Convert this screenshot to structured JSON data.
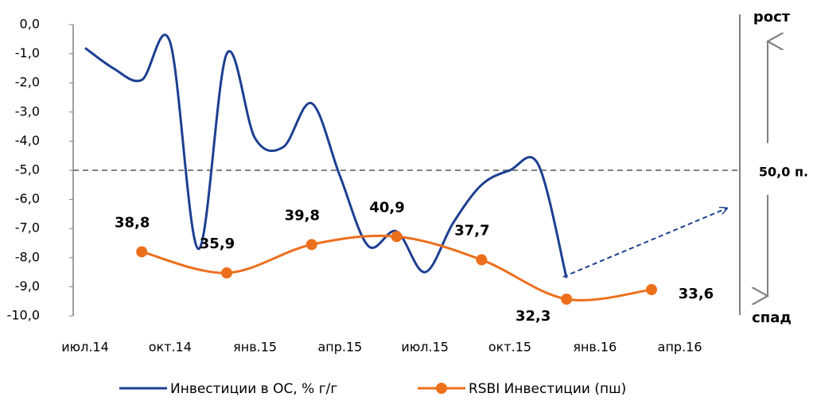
{
  "chart_data": {
    "type": "line",
    "categories": [
      "июл.14",
      null,
      null,
      "окт.14",
      null,
      null,
      "янв.15",
      null,
      null,
      "апр.15",
      null,
      null,
      "июл.15",
      null,
      null,
      "окт.15",
      null,
      null,
      "янв.16",
      null,
      null,
      "апр.16"
    ],
    "series": [
      {
        "name": "Инвестиции в ОС, % г/г",
        "color": "#1c3f91",
        "values": [
          -0.8,
          -1.5,
          -1.9,
          -0.6,
          -7.7,
          -1.0,
          -3.9,
          -4.2,
          -2.7,
          -5.2,
          -7.6,
          -7.1,
          -8.5,
          -6.8,
          -5.5,
          -5.0,
          -4.8,
          -8.7,
          null,
          null,
          null,
          null
        ]
      },
      {
        "name": "RSBI Инвестиции (пш)",
        "color": "#ec6f1c",
        "axis": "y2",
        "values": [
          null,
          null,
          38.8,
          null,
          null,
          35.9,
          null,
          null,
          39.8,
          null,
          null,
          40.9,
          null,
          null,
          37.7,
          null,
          null,
          32.3,
          null,
          null,
          33.6,
          null
        ],
        "value_labels": [
          null,
          null,
          "38,8",
          null,
          null,
          "35,9",
          null,
          null,
          "39,8",
          null,
          null,
          "40,9",
          null,
          null,
          "37,7",
          null,
          null,
          "32,3",
          null,
          null,
          "33,6",
          null
        ]
      }
    ],
    "ylim": [
      -10,
      0
    ],
    "yticks": [
      {
        "value": 0,
        "label": "0,0"
      },
      {
        "value": -1,
        "label": "-1,0"
      },
      {
        "value": -2,
        "label": "-2,0"
      },
      {
        "value": -3,
        "label": "-3,0"
      },
      {
        "value": -4,
        "label": "-4,0"
      },
      {
        "value": -5,
        "label": "-5,0"
      },
      {
        "value": -6,
        "label": "-6,0"
      },
      {
        "value": -7,
        "label": "-7,0"
      },
      {
        "value": -8,
        "label": "-8,0"
      },
      {
        "value": -9,
        "label": "-9,0"
      },
      {
        "value": -10,
        "label": "-10,0"
      }
    ],
    "y2lim": [
      30,
      70
    ],
    "y2ticks": [
      {
        "value": 50,
        "label": "50,0 п."
      }
    ],
    "annotations": [
      "рост",
      "спад"
    ]
  }
}
